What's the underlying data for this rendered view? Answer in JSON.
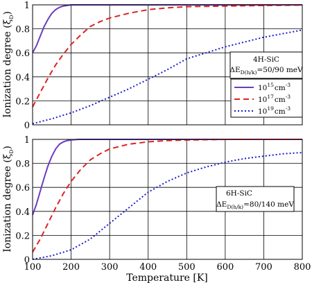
{
  "chart_data": [
    {
      "type": "line",
      "panel": "top",
      "ylabel_base": "Ionization degree (",
      "ylabel_sym": "ξ",
      "ylabel_sub": "D",
      "ylabel_end": ")",
      "xlim": [
        100,
        800
      ],
      "ylim": [
        0,
        1
      ],
      "x_ticks": [
        "100",
        "200",
        "300",
        "400",
        "500",
        "600",
        "700",
        "800"
      ],
      "y_ticks": [
        "0",
        "0.2",
        "0.4",
        "0.6",
        "0.8",
        "1"
      ],
      "grid": true,
      "annotation": {
        "line1": "4H-SiC",
        "line2_pre": "ΔE",
        "line2_sub": "D(h/k)",
        "line2_post": "=50/90 meV"
      },
      "legend": [
        {
          "base": "10",
          "exp": "15",
          "unit": "cm",
          "unit_exp": "-3"
        },
        {
          "base": "10",
          "exp": "17",
          "unit": "cm",
          "unit_exp": "-3"
        },
        {
          "base": "10",
          "exp": "19",
          "unit": "cm",
          "unit_exp": "-3"
        }
      ],
      "series": [
        {
          "color": "#6a3dbd",
          "dash": "solid",
          "x": [
            100,
            110,
            120,
            130,
            140,
            150,
            160,
            170,
            180,
            190,
            200,
            220,
            250,
            300,
            400,
            500,
            600,
            700,
            800
          ],
          "y": [
            0.6,
            0.66,
            0.74,
            0.82,
            0.88,
            0.93,
            0.96,
            0.98,
            0.99,
            0.995,
            1.0,
            1.0,
            1.0,
            1.0,
            1.0,
            1.0,
            1.0,
            1.0,
            1.0
          ]
        },
        {
          "color": "#dd2222",
          "dash": "dashed",
          "x": [
            100,
            120,
            140,
            160,
            180,
            200,
            225,
            250,
            275,
            300,
            350,
            400,
            450,
            500,
            600,
            700,
            800
          ],
          "y": [
            0.15,
            0.27,
            0.39,
            0.5,
            0.59,
            0.67,
            0.75,
            0.82,
            0.86,
            0.89,
            0.93,
            0.96,
            0.975,
            0.985,
            0.99,
            0.995,
            0.998
          ]
        },
        {
          "color": "#1a1acc",
          "dash": "dotted",
          "x": [
            100,
            150,
            200,
            250,
            300,
            350,
            400,
            450,
            500,
            550,
            600,
            650,
            700,
            750,
            800
          ],
          "y": [
            0.01,
            0.05,
            0.1,
            0.16,
            0.23,
            0.3,
            0.38,
            0.46,
            0.55,
            0.6,
            0.65,
            0.69,
            0.73,
            0.76,
            0.79
          ]
        }
      ]
    },
    {
      "type": "line",
      "panel": "bottom",
      "xlabel": "Temperature [K]",
      "ylabel_base": "Ionization degree (",
      "ylabel_sym": "ξ",
      "ylabel_sub": "D",
      "ylabel_end": ")",
      "xlim": [
        100,
        800
      ],
      "ylim": [
        0,
        1
      ],
      "x_ticks": [
        "100",
        "200",
        "300",
        "400",
        "500",
        "600",
        "700",
        "800"
      ],
      "y_ticks": [
        "0",
        "0.2",
        "0.4",
        "0.6",
        "0.8",
        "1"
      ],
      "grid": true,
      "annotation": {
        "line1": "6H-SiC",
        "line2_pre": "ΔE",
        "line2_sub": "D(h/k)",
        "line2_post": "=80/140 meV"
      },
      "series": [
        {
          "color": "#6a3dbd",
          "dash": "solid",
          "x": [
            100,
            110,
            120,
            130,
            140,
            150,
            160,
            170,
            180,
            190,
            200,
            220,
            250,
            300,
            400,
            500,
            600,
            700,
            800
          ],
          "y": [
            0.37,
            0.46,
            0.57,
            0.68,
            0.78,
            0.86,
            0.92,
            0.96,
            0.98,
            0.99,
            0.995,
            1.0,
            1.0,
            1.0,
            1.0,
            1.0,
            1.0,
            1.0,
            1.0
          ]
        },
        {
          "color": "#dd2222",
          "dash": "dashed",
          "x": [
            100,
            120,
            140,
            160,
            180,
            200,
            225,
            250,
            275,
            300,
            350,
            400,
            450,
            500,
            600,
            700,
            800
          ],
          "y": [
            0.06,
            0.17,
            0.3,
            0.43,
            0.55,
            0.65,
            0.75,
            0.83,
            0.88,
            0.92,
            0.96,
            0.98,
            0.99,
            0.995,
            1.0,
            1.0,
            1.0
          ]
        },
        {
          "color": "#1a1acc",
          "dash": "dotted",
          "x": [
            100,
            150,
            200,
            250,
            300,
            350,
            400,
            450,
            500,
            550,
            600,
            650,
            700,
            750,
            800
          ],
          "y": [
            0.0,
            0.03,
            0.08,
            0.17,
            0.3,
            0.43,
            0.56,
            0.65,
            0.72,
            0.77,
            0.81,
            0.84,
            0.86,
            0.88,
            0.89
          ]
        }
      ]
    }
  ]
}
